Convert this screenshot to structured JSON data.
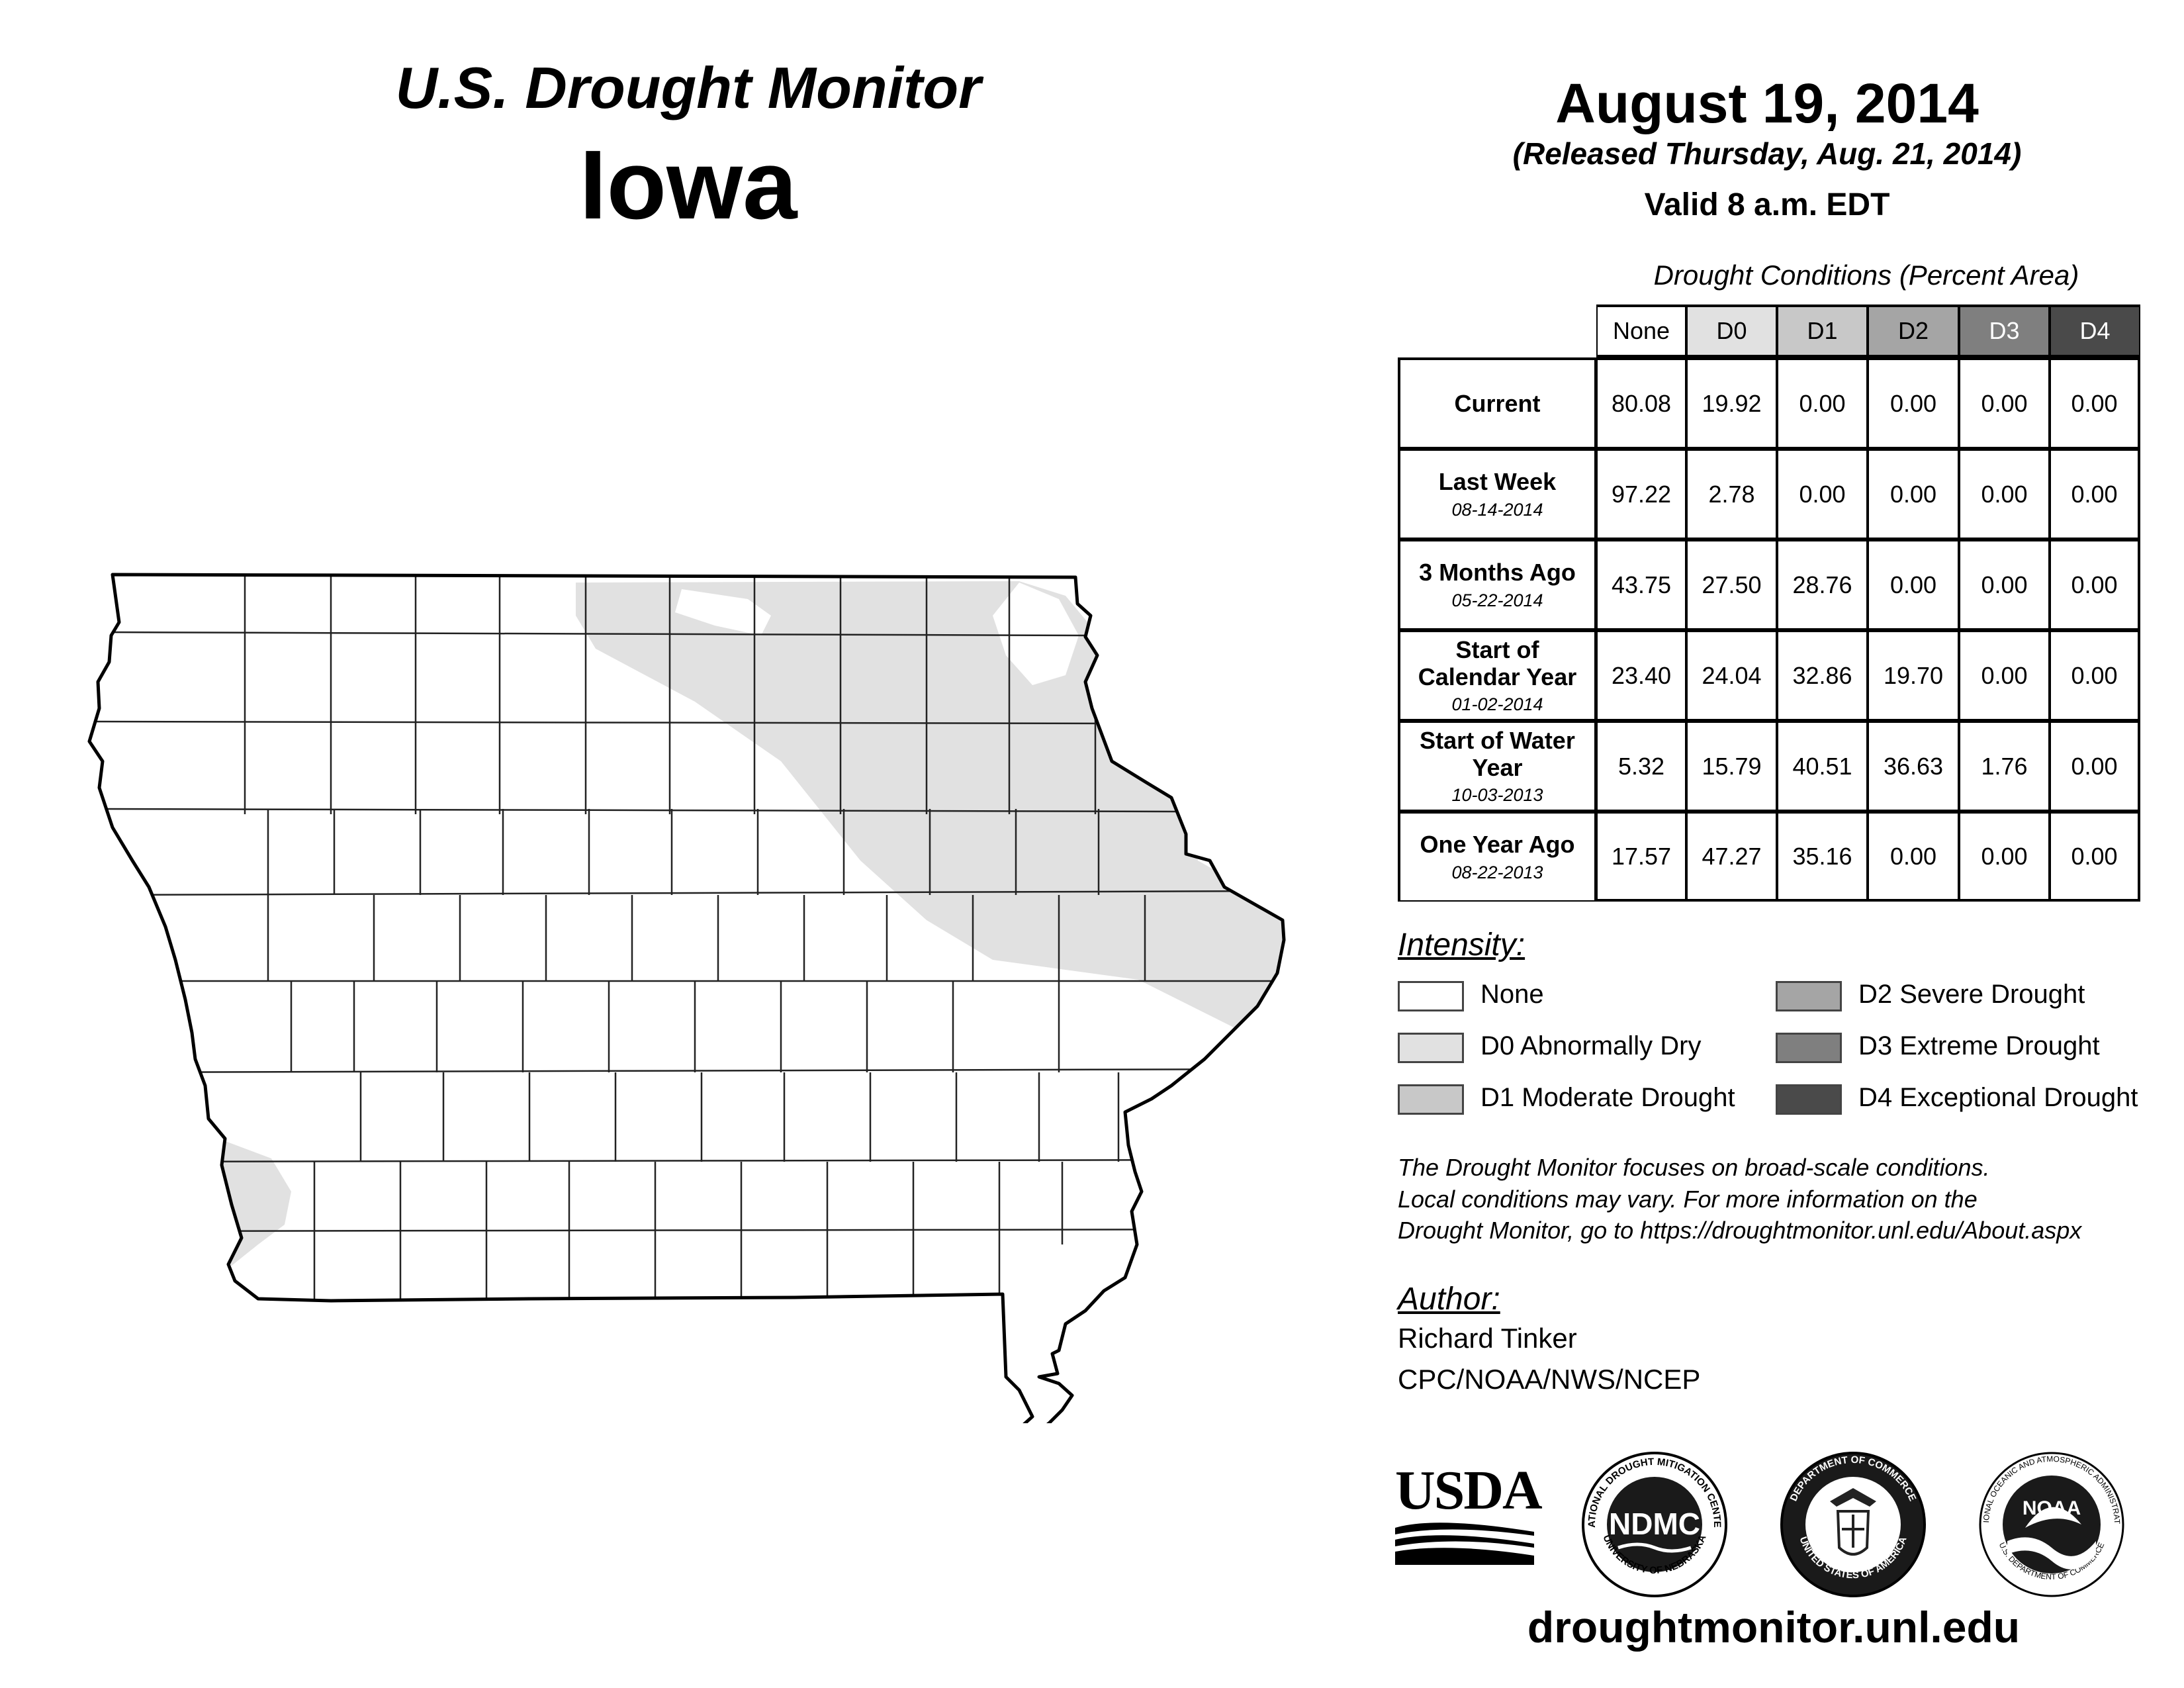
{
  "header": {
    "title": "U.S. Drought Monitor",
    "state": "Iowa",
    "date": "August 19, 2014",
    "released": "(Released Thursday, Aug. 21, 2014)",
    "valid": "Valid 8 a.m. EDT"
  },
  "table": {
    "caption": "Drought Conditions (Percent Area)",
    "columns": [
      "None",
      "D0",
      "D1",
      "D2",
      "D3",
      "D4"
    ],
    "column_colors": [
      "#ffffff",
      "#e1e1e1",
      "#c8c8c8",
      "#a5a5a5",
      "#7f7f7f",
      "#4a4a4a"
    ],
    "column_text_colors": [
      "#000000",
      "#000000",
      "#000000",
      "#000000",
      "#ffffff",
      "#ffffff"
    ],
    "rows": [
      {
        "label": "Current",
        "sub": "",
        "values": [
          "80.08",
          "19.92",
          "0.00",
          "0.00",
          "0.00",
          "0.00"
        ]
      },
      {
        "label": "Last Week",
        "sub": "08-14-2014",
        "values": [
          "97.22",
          "2.78",
          "0.00",
          "0.00",
          "0.00",
          "0.00"
        ]
      },
      {
        "label": "3 Months Ago",
        "sub": "05-22-2014",
        "values": [
          "43.75",
          "27.50",
          "28.76",
          "0.00",
          "0.00",
          "0.00"
        ]
      },
      {
        "label": "Start of Calendar Year",
        "sub": "01-02-2014",
        "values": [
          "23.40",
          "24.04",
          "32.86",
          "19.70",
          "0.00",
          "0.00"
        ]
      },
      {
        "label": "Start of Water Year",
        "sub": "10-03-2013",
        "values": [
          "5.32",
          "15.79",
          "40.51",
          "36.63",
          "1.76",
          "0.00"
        ]
      },
      {
        "label": "One Year Ago",
        "sub": "08-22-2013",
        "values": [
          "17.57",
          "47.27",
          "35.16",
          "0.00",
          "0.00",
          "0.00"
        ]
      }
    ]
  },
  "legend": {
    "heading": "Intensity:",
    "items": [
      {
        "label": "None",
        "color": "#ffffff"
      },
      {
        "label": "D0 Abnormally Dry",
        "color": "#e1e1e1"
      },
      {
        "label": "D1 Moderate Drought",
        "color": "#c8c8c8"
      },
      {
        "label": "D2 Severe Drought",
        "color": "#a5a5a5"
      },
      {
        "label": "D3 Extreme Drought",
        "color": "#7f7f7f"
      },
      {
        "label": "D4 Exceptional Drought",
        "color": "#4a4a4a"
      }
    ]
  },
  "note": {
    "line1": "The Drought Monitor focuses on broad-scale conditions.",
    "line2": "Local conditions may vary. For more information on the",
    "line3": "Drought Monitor, go to https://droughtmonitor.unl.edu/About.aspx"
  },
  "author": {
    "heading": "Author:",
    "name": "Richard Tinker",
    "org": "CPC/NOAA/NWS/NCEP"
  },
  "logos": {
    "usda": "USDA",
    "ndmc": "NDMC",
    "ndmc_ring_top": "NATIONAL DROUGHT MITIGATION CENTER",
    "ndmc_ring_bottom": "UNIVERSITY OF NEBRASKA",
    "doc_ring_top": "DEPARTMENT OF COMMERCE",
    "doc_ring_bottom": "UNITED STATES OF AMERICA",
    "noaa": "NOAA",
    "noaa_ring_top": "NATIONAL OCEANIC AND ATMOSPHERIC ADMINISTRATION",
    "noaa_ring_bottom": "U.S. DEPARTMENT OF COMMERCE"
  },
  "footer": {
    "site": "droughtmonitor.unl.edu"
  }
}
